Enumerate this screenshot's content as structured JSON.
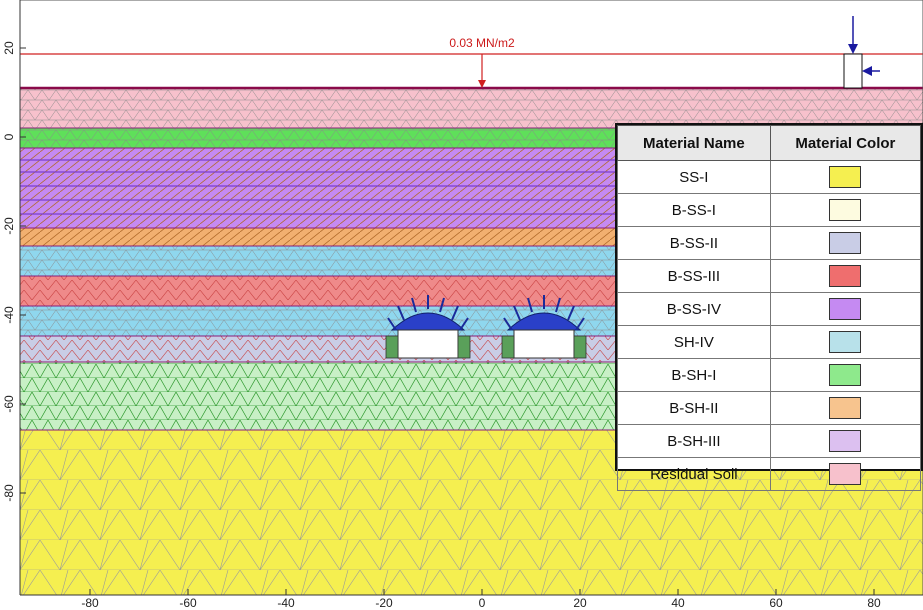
{
  "load_label": "0.03 MN/m2",
  "x_axis": {
    "ticks": [
      {
        "value": -80,
        "label": "-80"
      },
      {
        "value": -60,
        "label": "-60"
      },
      {
        "value": -40,
        "label": "-40"
      },
      {
        "value": -20,
        "label": "-20"
      },
      {
        "value": 0,
        "label": "0"
      },
      {
        "value": 20,
        "label": "20"
      },
      {
        "value": 40,
        "label": "40"
      },
      {
        "value": 60,
        "label": "60"
      },
      {
        "value": 80,
        "label": "80"
      }
    ]
  },
  "y_axis": {
    "ticks": [
      {
        "value": 20,
        "label": "20"
      },
      {
        "value": 0,
        "label": "0"
      },
      {
        "value": -20,
        "label": "-20"
      },
      {
        "value": -40,
        "label": "-40"
      },
      {
        "value": -60,
        "label": "-60"
      },
      {
        "value": -80,
        "label": "-80"
      }
    ]
  },
  "legend": {
    "header_name": "Material Name",
    "header_color": "Material Color",
    "materials": [
      {
        "name": "SS-I",
        "color": "#f5ef50"
      },
      {
        "name": "B-SS-I",
        "color": "#fdfbe0"
      },
      {
        "name": "B-SS-II",
        "color": "#c9cde6"
      },
      {
        "name": "B-SS-III",
        "color": "#ef6e6e"
      },
      {
        "name": "B-SS-IV",
        "color": "#c58af2"
      },
      {
        "name": "SH-IV",
        "color": "#b8e1ea"
      },
      {
        "name": "B-SH-I",
        "color": "#8ee98c"
      },
      {
        "name": "B-SH-II",
        "color": "#f7c48e"
      },
      {
        "name": "B-SH-III",
        "color": "#dcc0f0"
      },
      {
        "name": "Residual Soil",
        "color": "#f7c1cc"
      }
    ]
  }
}
